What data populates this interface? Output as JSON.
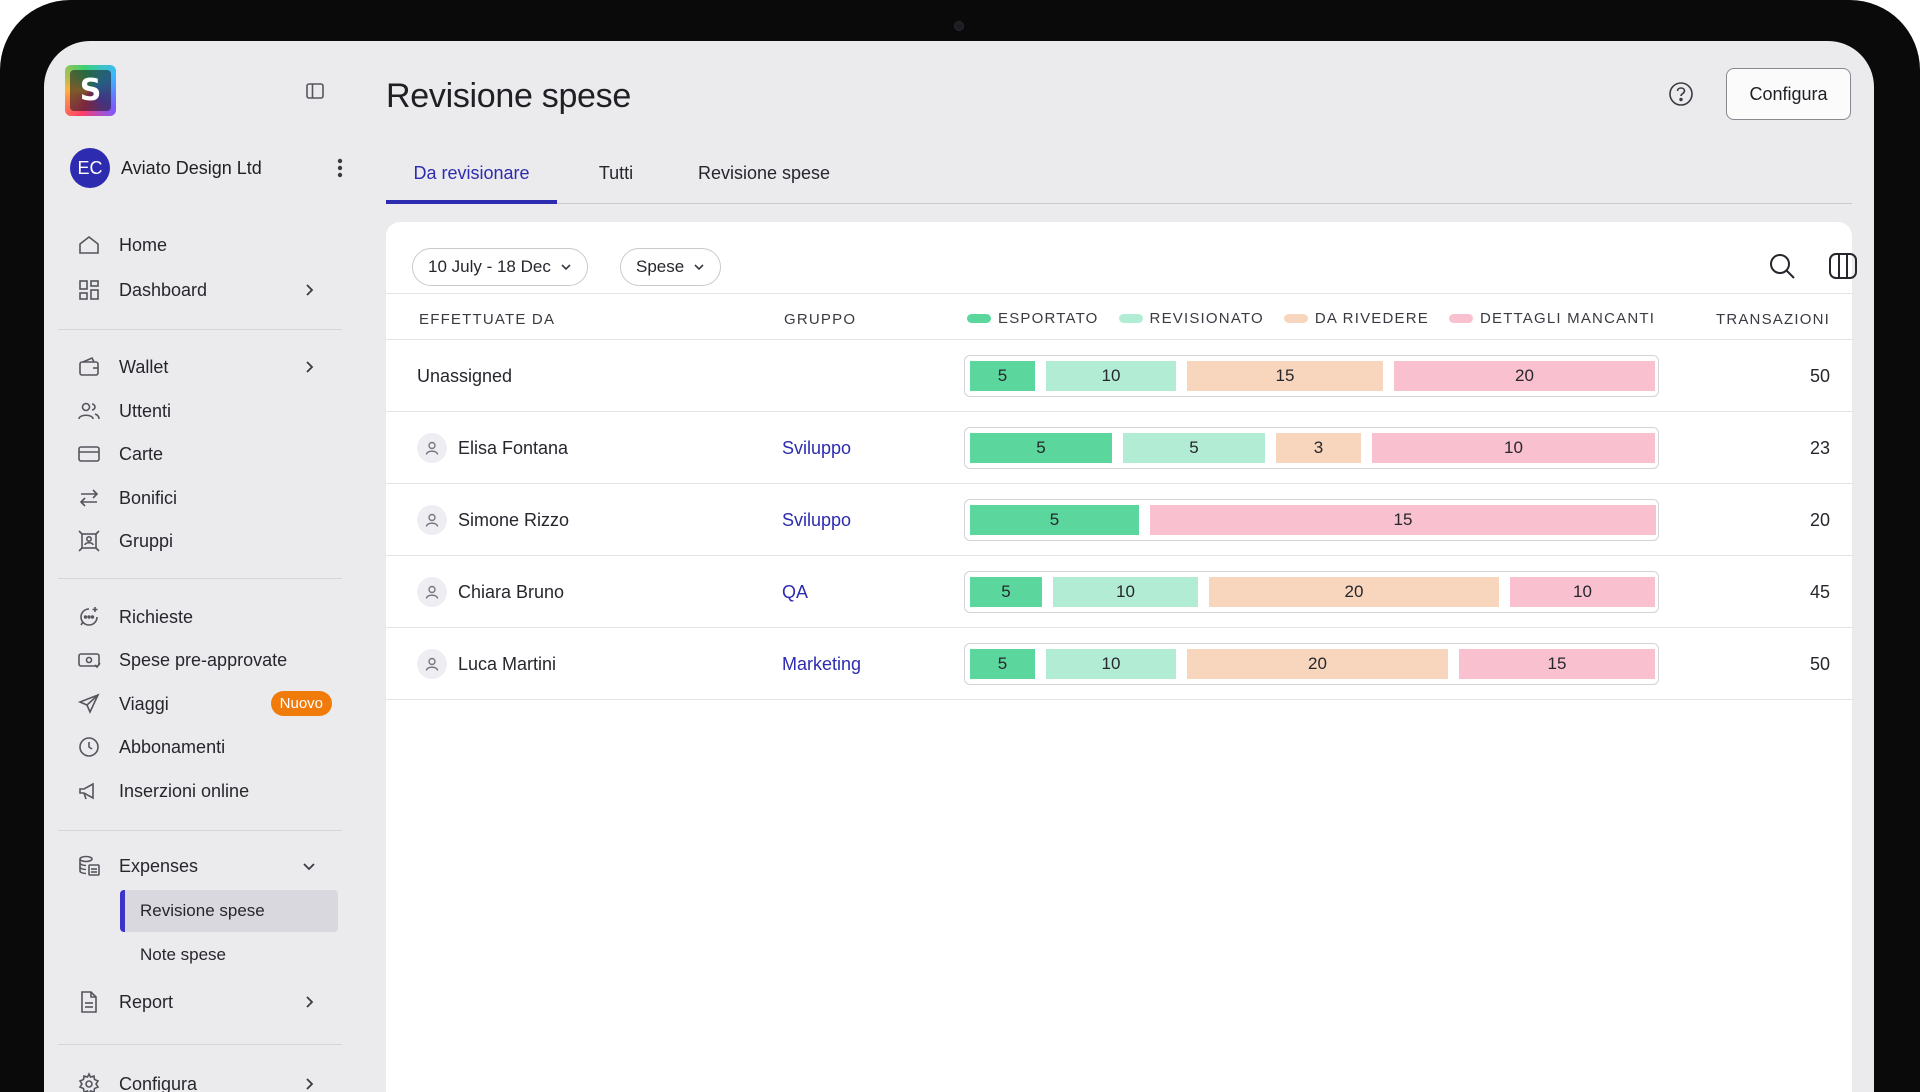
{
  "app": {
    "logo_letter": "S"
  },
  "org": {
    "initials": "EC",
    "name": "Aviato Design Ltd"
  },
  "nav": {
    "home": "Home",
    "dashboard": "Dashboard",
    "wallet": "Wallet",
    "users": "Uttenti",
    "cards": "Carte",
    "transfers": "Bonifici",
    "groups": "Gruppi",
    "requests": "Richieste",
    "preapproved": "Spese pre-approvate",
    "travel": "Viaggi",
    "travel_badge": "Nuovo",
    "subscriptions": "Abbonamenti",
    "online_ads": "Inserzioni online",
    "expenses": "Expenses",
    "expenses_sub": [
      "Revisione spese",
      "Note spese"
    ],
    "report": "Report",
    "configure": "Configura"
  },
  "header": {
    "title": "Revisione spese",
    "configure_button": "Configura"
  },
  "tabs": [
    "Da revisionare",
    "Tutti",
    "Revisione spese"
  ],
  "filters": {
    "date_range": "10 July - 18 Dec",
    "type": "Spese"
  },
  "table": {
    "headers": {
      "by": "EFFETTUATE DA",
      "group": "GRUPPO",
      "transactions": "TRANSAZIONI"
    },
    "legend": [
      {
        "label": "ESPORTATO",
        "color": "#5bd69d"
      },
      {
        "label": "REVISIONATO",
        "color": "#b3ecd4"
      },
      {
        "label": "DA RIVEDERE",
        "color": "#f8d6bd"
      },
      {
        "label": "DETTAGLI MANCANTI",
        "color": "#f9c1cf"
      }
    ],
    "rows": [
      {
        "name": "Unassigned",
        "group": "",
        "segments": [
          5,
          10,
          15,
          20
        ],
        "total": "50"
      },
      {
        "name": "Elisa Fontana",
        "group": "Sviluppo",
        "segments": [
          5,
          5,
          3,
          10
        ],
        "total": "23"
      },
      {
        "name": "Simone Rizzo",
        "group": "Sviluppo",
        "segments": [
          5,
          0,
          0,
          15
        ],
        "total": "20"
      },
      {
        "name": "Chiara Bruno",
        "group": "QA",
        "segments": [
          5,
          10,
          20,
          10
        ],
        "total": "45"
      },
      {
        "name": "Luca Martini",
        "group": "Marketing",
        "segments": [
          5,
          10,
          20,
          15
        ],
        "total": "50"
      }
    ]
  }
}
